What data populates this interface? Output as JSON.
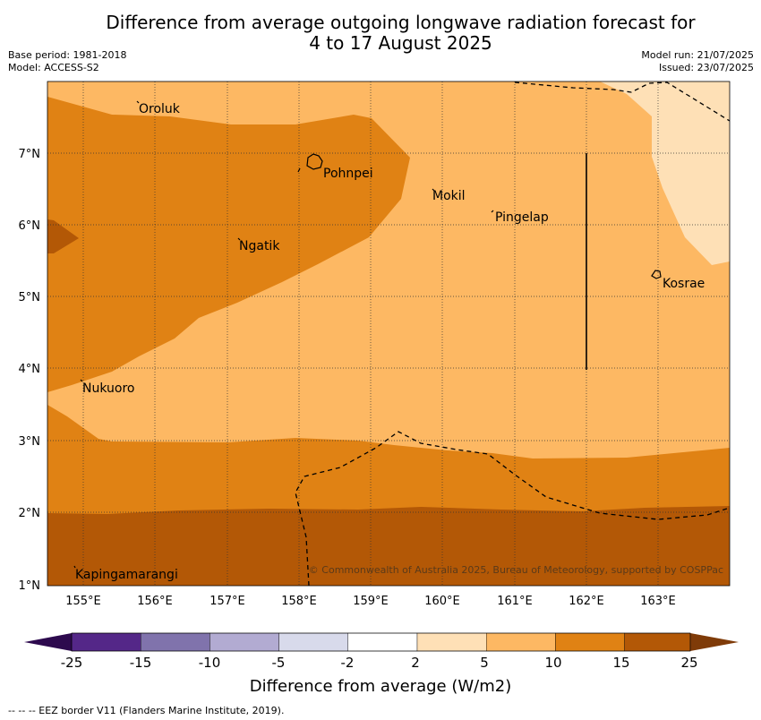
{
  "title_line1": "Difference from average outgoing longwave radiation forecast for",
  "title_line2": "4 to 17 August 2025",
  "base_period": "Base period: 1981-2018",
  "model": "Model: ACCESS-S2",
  "model_run": "Model run: 21/07/2025",
  "issued": "Issued: 23/07/2025",
  "copyright": "© Commonwealth of Australia 2025, Bureau of Meteorology, supported by COSPPac",
  "places": [
    "Oroluk",
    "Pohnpei",
    "Mokil",
    "Pingelap",
    "Ngatik",
    "Kosrae",
    "Nukuoro",
    "Kapingamarangi"
  ],
  "lat_ticks": [
    "7°N",
    "6°N",
    "5°N",
    "4°N",
    "3°N",
    "2°N",
    "1°N"
  ],
  "lon_ticks": [
    "155°E",
    "156°E",
    "157°E",
    "158°E",
    "159°E",
    "160°E",
    "161°E",
    "162°E",
    "163°E"
  ],
  "colorbar": {
    "labels": [
      "-25",
      "-15",
      "-10",
      "-5",
      "-2",
      "2",
      "5",
      "10",
      "15",
      "25"
    ],
    "colors": [
      "#2d0a4e",
      "#542788",
      "#8073ac",
      "#b2abd2",
      "#d8daeb",
      "#ffffff",
      "#fee0b6",
      "#fdb863",
      "#e08214",
      "#b35806",
      "#7f3b08"
    ],
    "title": "Difference from average (W/m2)"
  },
  "legend_note": "--  --  -- EEZ border V11 (Flanders Marine Institute, 2019).",
  "zone_colors": {
    "light": "#fee0b6",
    "mid": "#fdb863",
    "orange": "#e08214",
    "dark": "#b35806"
  }
}
